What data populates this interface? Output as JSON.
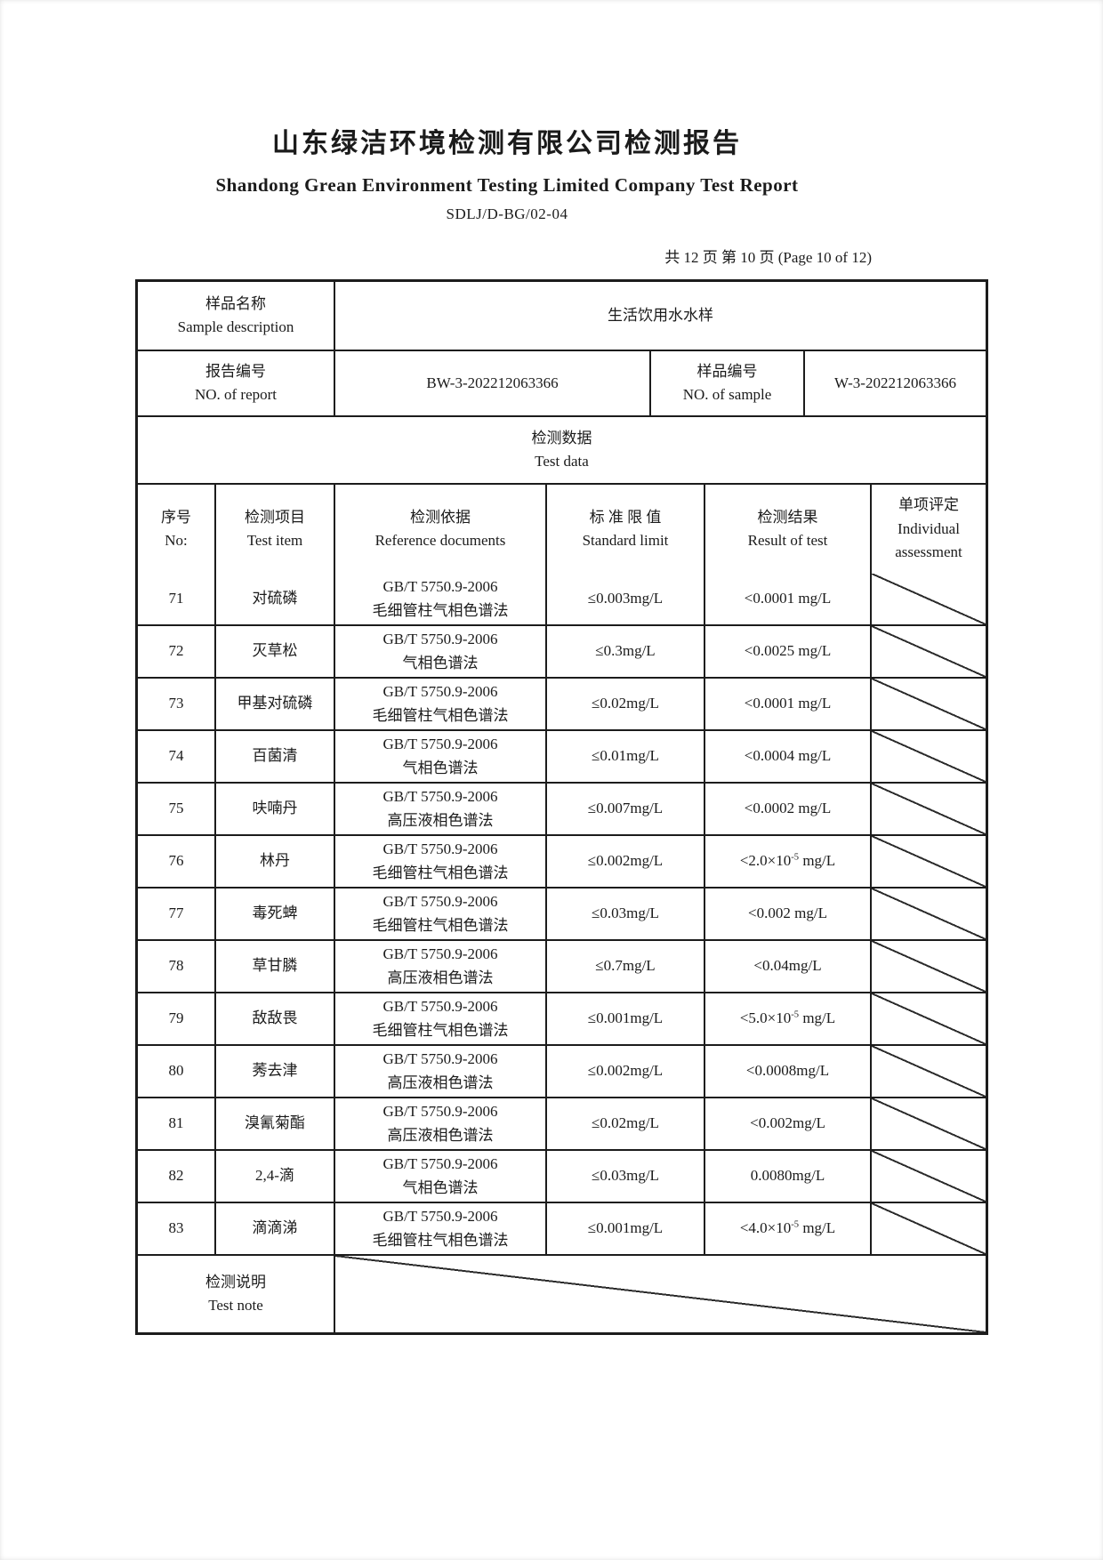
{
  "page": {
    "title_cn": "山东绿洁环境检测有限公司检测报告",
    "title_en": "Shandong Grean Environment Testing Limited Company Test Report",
    "doc_code": "SDLJ/D-BG/02-04",
    "page_info": "共 12 页 第 10 页 (Page 10 of 12)"
  },
  "table": {
    "sample": {
      "label_cn": "样品名称",
      "label_en": "Sample description",
      "value": "生活饮用水水样"
    },
    "report_no": {
      "label_cn": "报告编号",
      "label_en": "NO. of report",
      "value": "BW-3-202212063366"
    },
    "sample_no": {
      "label_cn": "样品编号",
      "label_en": "NO. of sample",
      "value": "W-3-202212063366"
    },
    "section": {
      "title_cn": "检测数据",
      "title_en": "Test data"
    },
    "columns": [
      {
        "cn": "序号",
        "en": "No:"
      },
      {
        "cn": "检测项目",
        "en": "Test item"
      },
      {
        "cn": "检测依据",
        "en": "Reference documents"
      },
      {
        "cn": "标 准 限 值",
        "en": "Standard limit"
      },
      {
        "cn": "检测结果",
        "en": "Result of test"
      },
      {
        "cn": "单项评定",
        "en": "Individual assessment"
      }
    ],
    "rows": [
      {
        "no": "71",
        "item": "对硫磷",
        "ref1": "GB/T 5750.9-2006",
        "ref2": "毛细管柱气相色谱法",
        "limit": "≤0.003mg/L",
        "result": [
          "<0.0001 mg/L"
        ]
      },
      {
        "no": "72",
        "item": "灭草松",
        "ref1": "GB/T 5750.9-2006",
        "ref2": "气相色谱法",
        "limit": "≤0.3mg/L",
        "result": [
          "<0.0025 mg/L"
        ]
      },
      {
        "no": "73",
        "item": "甲基对硫磷",
        "ref1": "GB/T 5750.9-2006",
        "ref2": "毛细管柱气相色谱法",
        "limit": "≤0.02mg/L",
        "result": [
          "<0.0001 mg/L"
        ]
      },
      {
        "no": "74",
        "item": "百菌清",
        "ref1": "GB/T 5750.9-2006",
        "ref2": "气相色谱法",
        "limit": "≤0.01mg/L",
        "result": [
          "<0.0004 mg/L"
        ]
      },
      {
        "no": "75",
        "item": "呋喃丹",
        "ref1": "GB/T 5750.9-2006",
        "ref2": "高压液相色谱法",
        "limit": "≤0.007mg/L",
        "result": [
          "<0.0002 mg/L"
        ]
      },
      {
        "no": "76",
        "item": "林丹",
        "ref1": "GB/T 5750.9-2006",
        "ref2": "毛细管柱气相色谱法",
        "limit": "≤0.002mg/L",
        "result": [
          "<2.0×10",
          {
            "sup": "-5"
          },
          " mg/L"
        ]
      },
      {
        "no": "77",
        "item": "毒死蜱",
        "ref1": "GB/T 5750.9-2006",
        "ref2": "毛细管柱气相色谱法",
        "limit": "≤0.03mg/L",
        "result": [
          "<0.002 mg/L"
        ]
      },
      {
        "no": "78",
        "item": "草甘膦",
        "ref1": "GB/T 5750.9-2006",
        "ref2": "高压液相色谱法",
        "limit": "≤0.7mg/L",
        "result": [
          "<0.04mg/L"
        ]
      },
      {
        "no": "79",
        "item": "敌敌畏",
        "ref1": "GB/T 5750.9-2006",
        "ref2": "毛细管柱气相色谱法",
        "limit": "≤0.001mg/L",
        "result": [
          "<5.0×10",
          {
            "sup": "-5"
          },
          " mg/L"
        ]
      },
      {
        "no": "80",
        "item": "莠去津",
        "ref1": "GB/T 5750.9-2006",
        "ref2": "高压液相色谱法",
        "limit": "≤0.002mg/L",
        "result": [
          "<0.0008mg/L"
        ]
      },
      {
        "no": "81",
        "item": "溴氰菊酯",
        "ref1": "GB/T 5750.9-2006",
        "ref2": "高压液相色谱法",
        "limit": "≤0.02mg/L",
        "result": [
          "<0.002mg/L"
        ]
      },
      {
        "no": "82",
        "item": "2,4-滴",
        "ref1": "GB/T 5750.9-2006",
        "ref2": "气相色谱法",
        "limit": "≤0.03mg/L",
        "result": [
          "0.0080mg/L"
        ]
      },
      {
        "no": "83",
        "item": "滴滴涕",
        "ref1": "GB/T 5750.9-2006",
        "ref2": "毛细管柱气相色谱法",
        "limit": "≤0.001mg/L",
        "result": [
          "<4.0×10",
          {
            "sup": "-5"
          },
          " mg/L"
        ]
      }
    ],
    "note": {
      "label_cn": "检测说明",
      "label_en": "Test note"
    }
  }
}
